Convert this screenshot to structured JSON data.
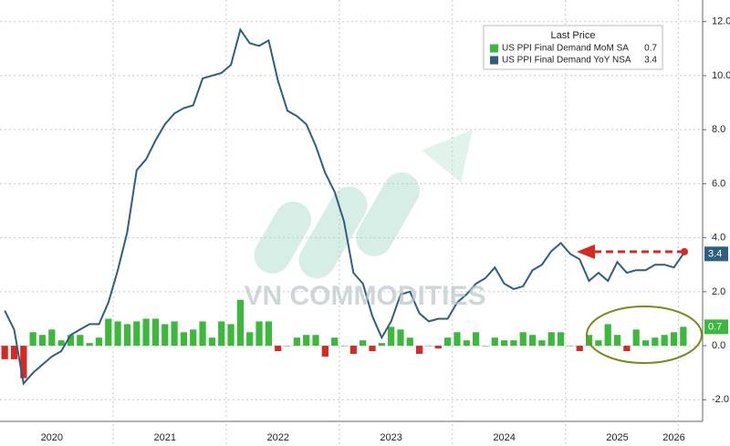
{
  "chart_data": {
    "type": "bar",
    "legend_title": "Last Price",
    "watermark": "VN COMMODITIES",
    "categories": [
      null,
      null,
      null,
      null,
      null,
      "2020",
      null,
      null,
      null,
      null,
      null,
      null,
      null,
      null,
      null,
      null,
      null,
      "2021",
      null,
      null,
      null,
      null,
      null,
      null,
      null,
      null,
      null,
      null,
      null,
      "2022",
      null,
      null,
      null,
      null,
      null,
      null,
      null,
      null,
      null,
      null,
      null,
      "2023",
      null,
      null,
      null,
      null,
      null,
      null,
      null,
      null,
      null,
      null,
      null,
      "2024",
      null,
      null,
      null,
      null,
      null,
      null,
      null,
      null,
      null,
      null,
      null,
      "2025",
      null,
      null,
      null,
      null,
      null,
      "2026",
      null
    ],
    "series": [
      {
        "name": "US PPI Final Demand MoM SA",
        "type": "bar",
        "color": "#3cb83c",
        "negative_color": "#d42a22",
        "values": [
          -0.5,
          -0.5,
          -1.2,
          0.5,
          0.4,
          0.6,
          0.2,
          0.4,
          0.4,
          0.1,
          0.3,
          1.0,
          0.9,
          0.8,
          0.9,
          1.0,
          1.0,
          0.8,
          0.9,
          0.5,
          0.6,
          0.9,
          0.3,
          0.9,
          0.8,
          1.7,
          0.5,
          0.9,
          0.9,
          -0.2,
          0.0,
          0.3,
          0.4,
          0.4,
          -0.4,
          0.3,
          0.0,
          -0.3,
          0.2,
          -0.2,
          0.1,
          0.7,
          0.6,
          0.3,
          -0.3,
          0.0,
          -0.1,
          0.3,
          0.5,
          0.2,
          0.5,
          0.0,
          0.3,
          0.2,
          0.2,
          0.5,
          0.4,
          0.2,
          0.5,
          0.5,
          0.0,
          -0.2,
          0.4,
          0.2,
          0.8,
          0.4,
          -0.2,
          0.6,
          0.2,
          0.3,
          0.4,
          0.5,
          0.7
        ]
      },
      {
        "name": "US PPI Final Demand YoY NSA",
        "type": "line",
        "color": "#2f5f80",
        "values": [
          1.3,
          0.6,
          -1.4,
          -1.0,
          -0.7,
          -0.4,
          -0.2,
          0.4,
          0.6,
          0.8,
          0.8,
          1.6,
          2.8,
          4.2,
          6.5,
          6.9,
          7.6,
          8.2,
          8.6,
          8.8,
          8.9,
          9.9,
          10.0,
          10.1,
          10.4,
          11.7,
          11.2,
          11.1,
          11.3,
          9.8,
          8.7,
          8.5,
          8.2,
          7.4,
          6.4,
          5.7,
          4.6,
          2.7,
          2.3,
          1.1,
          0.3,
          0.9,
          1.9,
          2.0,
          1.2,
          0.9,
          1.0,
          1.0,
          1.6,
          1.9,
          2.3,
          2.5,
          2.9,
          2.3,
          2.1,
          2.2,
          2.8,
          3.0,
          3.5,
          3.8,
          3.4,
          3.2,
          2.4,
          2.7,
          2.4,
          3.1,
          2.7,
          2.8,
          2.8,
          3.0,
          3.0,
          2.9,
          3.4
        ]
      }
    ],
    "ylim": [
      -2.8,
      12.8
    ],
    "yticks": [
      {
        "value": -2,
        "label": "-2.0"
      },
      {
        "value": 0,
        "label": "0.0"
      },
      {
        "value": 2,
        "label": "2.0"
      },
      {
        "value": 4,
        "label": "4.0"
      },
      {
        "value": 6,
        "label": "6.0"
      },
      {
        "value": 8,
        "label": "8.0"
      },
      {
        "value": 10,
        "label": "10.0"
      },
      {
        "value": 12,
        "label": "12.0"
      }
    ],
    "grid": true,
    "legend": "top-right"
  }
}
